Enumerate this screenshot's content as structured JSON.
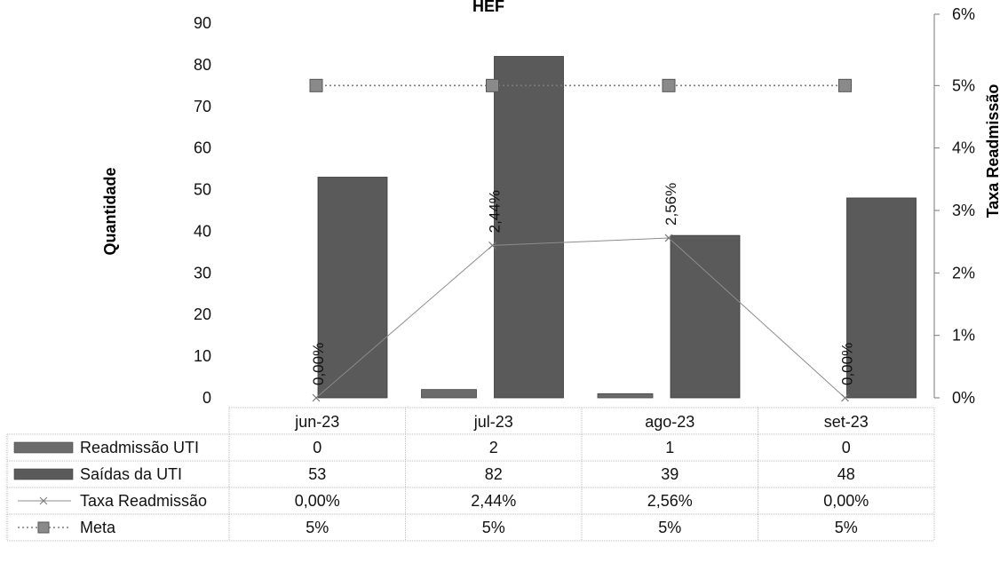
{
  "chart_data": {
    "type": "bar",
    "title": "HEF",
    "ylabel": "Quantidade",
    "y2label": "Taxa Readmissão",
    "ylim": [
      0,
      90
    ],
    "y_ticks": [
      "0",
      "10",
      "20",
      "30",
      "40",
      "50",
      "60",
      "70",
      "80",
      "90"
    ],
    "y2lim": [
      0,
      0.06
    ],
    "y2_ticks": [
      "0%",
      "1%",
      "2%",
      "3%",
      "4%",
      "5%",
      "6%"
    ],
    "categories": [
      "jun-23",
      "jul-23",
      "ago-23",
      "set-23"
    ],
    "series": [
      {
        "name": "Readmissão UTI",
        "kind": "bar",
        "axis": "left",
        "values": [
          0,
          2,
          1,
          0
        ],
        "labels": [
          "0",
          "2",
          "1",
          "0"
        ],
        "color": "#6b6b6b"
      },
      {
        "name": "Saídas da UTI",
        "kind": "bar",
        "axis": "left",
        "values": [
          53,
          82,
          39,
          48
        ],
        "labels": [
          "53",
          "82",
          "39",
          "48"
        ],
        "color": "#5a5a5a"
      },
      {
        "name": "Taxa Readmissão",
        "kind": "line",
        "axis": "right",
        "marker": "x",
        "values": [
          0.0,
          0.0244,
          0.0256,
          0.0
        ],
        "labels": [
          "0,00%",
          "2,44%",
          "2,56%",
          "0,00%"
        ],
        "color": "#8c8c8c"
      },
      {
        "name": "Meta",
        "kind": "line",
        "axis": "right",
        "marker": "square",
        "dashed": true,
        "values": [
          0.05,
          0.05,
          0.05,
          0.05
        ],
        "labels": [
          "5%",
          "5%",
          "5%",
          "5%"
        ],
        "color": "#7a7a7a"
      }
    ],
    "data_table": true,
    "grid": false
  }
}
